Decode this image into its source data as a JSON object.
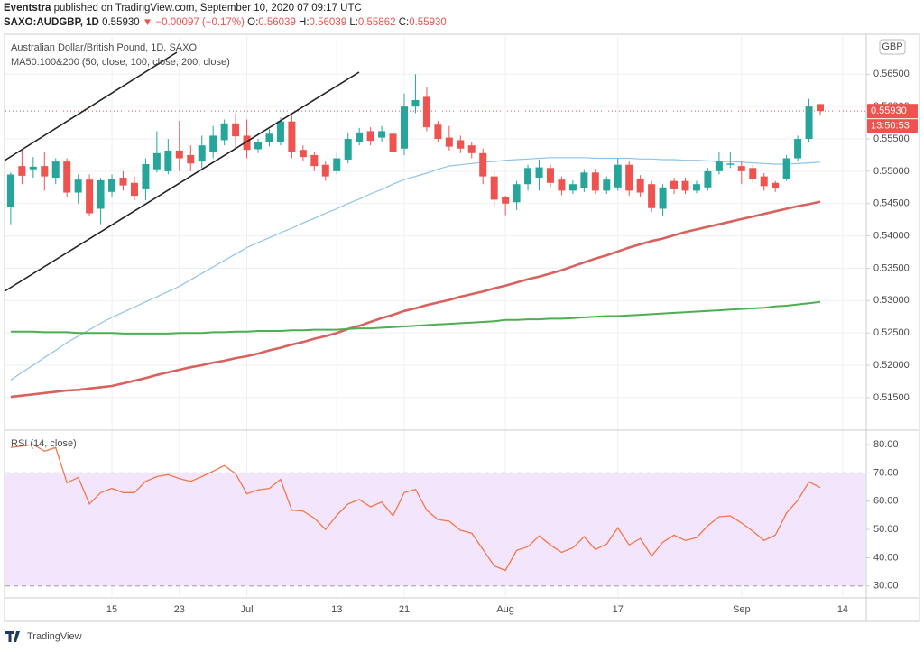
{
  "header": {
    "author": "Eventstra",
    "published": "published on TradingView.com, September 10, 2020 07:09:17 UTC",
    "symbol": "SAXO:AUDGBP, 1D",
    "last": "0.55930",
    "arrow": "▼",
    "change": "−0.00097 (−0.17%)",
    "quote": [
      {
        "label": "O:",
        "value": "0.56039"
      },
      {
        "label": "H:",
        "value": "0.56039"
      },
      {
        "label": "L:",
        "value": "0.55862"
      },
      {
        "label": "C:",
        "value": "0.55930"
      }
    ]
  },
  "footer": {
    "brand": "TradingView"
  },
  "chart_data": [
    {
      "type": "candlestick",
      "title": "Australian Dollar/British Pound, 1D, SAXO",
      "subtitle": "MA50.100&200 (50, close, 100, close, 200, close)",
      "currency": "GBP",
      "price_label": "0.55930",
      "countdown": "13:50:53",
      "up_color": "#26a69a",
      "down_color": "#ef5350",
      "grid": true,
      "categories": [
        null,
        null,
        null,
        null,
        null,
        null,
        null,
        null,
        null,
        "15",
        null,
        null,
        null,
        null,
        null,
        "23",
        null,
        null,
        null,
        null,
        null,
        "Jul",
        null,
        null,
        null,
        null,
        null,
        null,
        null,
        "13",
        null,
        null,
        null,
        null,
        null,
        "21",
        null,
        null,
        null,
        null,
        null,
        null,
        null,
        null,
        "Aug",
        null,
        null,
        null,
        null,
        null,
        null,
        null,
        null,
        null,
        "17",
        null,
        null,
        null,
        null,
        null,
        null,
        null,
        null,
        null,
        null,
        "Sep",
        null,
        null,
        null,
        null,
        null,
        null,
        null,
        null,
        "14"
      ],
      "open": [
        0.5445,
        0.5508,
        0.5503,
        0.5508,
        0.549,
        0.5515,
        0.5467,
        0.5487,
        0.5442,
        0.5468,
        0.549,
        0.5482,
        0.5472,
        0.5503,
        0.55,
        0.5532,
        0.5525,
        0.5515,
        0.553,
        0.5548,
        0.5574,
        0.5555,
        0.5534,
        0.5545,
        0.5545,
        0.5577,
        0.5533,
        0.5525,
        0.551,
        0.55,
        0.5518,
        0.5545,
        0.5562,
        0.5552,
        0.5558,
        0.5535,
        0.56,
        0.5615,
        0.5572,
        0.5552,
        0.5548,
        0.554,
        0.5528,
        0.5492,
        0.546,
        0.5452,
        0.548,
        0.549,
        0.5505,
        0.5487,
        0.547,
        0.5474,
        0.5498,
        0.547,
        0.5475,
        0.551,
        0.5488,
        0.548,
        0.5442,
        0.5485,
        0.5485,
        0.547,
        0.5475,
        0.55,
        0.551,
        0.5508,
        0.5505,
        0.5492,
        0.5482,
        0.5488,
        0.552,
        0.555,
        0.56039,
        null,
        null
      ],
      "high": [
        0.5498,
        0.5533,
        0.5522,
        0.553,
        0.552,
        0.552,
        0.5495,
        0.5495,
        0.549,
        0.5495,
        0.55,
        0.5492,
        0.552,
        0.5562,
        0.555,
        0.5578,
        0.554,
        0.5555,
        0.557,
        0.558,
        0.559,
        0.558,
        0.555,
        0.5565,
        0.5583,
        0.5586,
        0.554,
        0.553,
        0.5515,
        0.5528,
        0.556,
        0.5567,
        0.5568,
        0.557,
        0.557,
        0.562,
        0.565,
        0.563,
        0.5578,
        0.557,
        0.5555,
        0.5545,
        0.5535,
        0.55,
        0.5462,
        0.5485,
        0.551,
        0.5518,
        0.551,
        0.5492,
        0.5486,
        0.5503,
        0.5504,
        0.5492,
        0.552,
        0.5515,
        0.5494,
        0.5485,
        0.548,
        0.549,
        0.549,
        0.5485,
        0.5505,
        0.553,
        0.553,
        0.5515,
        0.551,
        0.5497,
        0.5485,
        0.5525,
        0.5555,
        0.5612,
        0.56039,
        null,
        null
      ],
      "low": [
        0.5418,
        0.548,
        0.549,
        0.547,
        0.548,
        0.546,
        0.545,
        0.543,
        0.5418,
        0.546,
        0.547,
        0.5455,
        0.5455,
        0.5498,
        0.5495,
        0.55,
        0.55,
        0.5505,
        0.552,
        0.554,
        0.5535,
        0.552,
        0.5528,
        0.5538,
        0.554,
        0.552,
        0.5515,
        0.55,
        0.5485,
        0.5495,
        0.5512,
        0.554,
        0.554,
        0.5545,
        0.5525,
        0.5525,
        0.559,
        0.5562,
        0.5545,
        0.5532,
        0.5528,
        0.552,
        0.548,
        0.5445,
        0.5432,
        0.544,
        0.547,
        0.547,
        0.5475,
        0.5463,
        0.5465,
        0.5468,
        0.5465,
        0.5465,
        0.547,
        0.5462,
        0.546,
        0.5437,
        0.543,
        0.5465,
        0.5465,
        0.5466,
        0.547,
        0.5495,
        0.5505,
        0.548,
        0.5482,
        0.547,
        0.5468,
        0.5485,
        0.5515,
        0.5545,
        0.55862,
        null,
        null
      ],
      "close": [
        0.5495,
        0.5493,
        0.5507,
        0.5492,
        0.5515,
        0.5467,
        0.5487,
        0.5435,
        0.5486,
        0.5488,
        0.5478,
        0.5462,
        0.5511,
        0.5528,
        0.5532,
        0.552,
        0.5512,
        0.554,
        0.5555,
        0.5574,
        0.5554,
        0.5533,
        0.5545,
        0.5558,
        0.5577,
        0.553,
        0.5522,
        0.5508,
        0.5492,
        0.552,
        0.555,
        0.556,
        0.5547,
        0.5562,
        0.553,
        0.56,
        0.561,
        0.5568,
        0.555,
        0.5538,
        0.5535,
        0.5528,
        0.5492,
        0.5456,
        0.545,
        0.548,
        0.5505,
        0.5506,
        0.5482,
        0.547,
        0.548,
        0.5498,
        0.547,
        0.5487,
        0.551,
        0.547,
        0.5467,
        0.5443,
        0.5475,
        0.5472,
        0.547,
        0.548,
        0.55,
        0.5515,
        0.5512,
        0.55,
        0.5488,
        0.5477,
        0.5474,
        0.552,
        0.555,
        0.56,
        0.5593,
        null,
        null
      ],
      "lines": [
        {
          "color": "#8cc4ec",
          "width": 1.2,
          "values": [
            0.5177,
            0.5189,
            0.52,
            0.5212,
            0.5223,
            0.5235,
            0.5245,
            0.5255,
            0.5265,
            0.5274,
            0.5282,
            0.529,
            0.5298,
            0.5306,
            0.5314,
            0.5322,
            0.5332,
            0.5342,
            0.5352,
            0.5362,
            0.5372,
            0.5382,
            0.539,
            0.5397,
            0.5405,
            0.5412,
            0.542,
            0.5427,
            0.5435,
            0.5442,
            0.545,
            0.5457,
            0.5465,
            0.5472,
            0.548,
            0.5487,
            0.5492,
            0.5497,
            0.5503,
            0.5508,
            0.551,
            0.5512,
            0.5514,
            0.5515,
            0.5517,
            0.5518,
            0.5519,
            0.552,
            0.5521,
            0.5521,
            0.5521,
            0.5521,
            0.552,
            0.552,
            0.552,
            0.552,
            0.5519,
            0.5519,
            0.5518,
            0.5518,
            0.5517,
            0.5517,
            0.5516,
            0.5515,
            0.5515,
            0.5514,
            0.5513,
            0.5512,
            0.5511,
            0.5511,
            0.5512,
            0.5513,
            0.5514,
            null,
            null
          ]
        },
        {
          "color": "#d9625f",
          "width": 2.6,
          "values": [
            0.5151,
            0.5153,
            0.5155,
            0.5157,
            0.5159,
            0.5161,
            0.5162,
            0.5164,
            0.5166,
            0.5168,
            0.5172,
            0.5176,
            0.518,
            0.5185,
            0.5189,
            0.5193,
            0.5197,
            0.52,
            0.5204,
            0.5207,
            0.5211,
            0.5214,
            0.5218,
            0.5223,
            0.5227,
            0.5232,
            0.5236,
            0.5241,
            0.5245,
            0.525,
            0.5256,
            0.5261,
            0.5267,
            0.5273,
            0.5278,
            0.5284,
            0.5288,
            0.5293,
            0.5297,
            0.5301,
            0.5306,
            0.531,
            0.5314,
            0.5319,
            0.5323,
            0.5328,
            0.5333,
            0.5337,
            0.5342,
            0.5347,
            0.5353,
            0.5359,
            0.5365,
            0.537,
            0.5376,
            0.5382,
            0.5387,
            0.5392,
            0.5396,
            0.5401,
            0.5406,
            0.541,
            0.5414,
            0.5418,
            0.5422,
            0.5426,
            0.543,
            0.5434,
            0.5438,
            0.5442,
            0.5446,
            0.5449,
            0.5453,
            null,
            null
          ]
        },
        {
          "color": "#4caf50",
          "width": 2,
          "values": [
            0.5252,
            0.5252,
            0.5252,
            0.5251,
            0.5251,
            0.5251,
            0.525,
            0.525,
            0.525,
            0.525,
            0.5249,
            0.5249,
            0.5249,
            0.5249,
            0.5249,
            0.525,
            0.525,
            0.525,
            0.5251,
            0.5251,
            0.5252,
            0.5252,
            0.5253,
            0.5253,
            0.5253,
            0.5254,
            0.5254,
            0.5255,
            0.5255,
            0.5255,
            0.5256,
            0.5257,
            0.5257,
            0.5258,
            0.5259,
            0.526,
            0.5261,
            0.5262,
            0.5263,
            0.5264,
            0.5265,
            0.5266,
            0.5267,
            0.5268,
            0.527,
            0.527,
            0.5271,
            0.5271,
            0.5272,
            0.5272,
            0.5273,
            0.5274,
            0.5275,
            0.5276,
            0.5276,
            0.5277,
            0.5278,
            0.5279,
            0.528,
            0.5281,
            0.5282,
            0.5283,
            0.5284,
            0.5285,
            0.5286,
            0.5287,
            0.5288,
            0.5289,
            0.5291,
            0.5292,
            0.5294,
            0.5296,
            0.5298,
            null,
            null
          ]
        }
      ],
      "ylim": [
        0.5101,
        0.5709
      ],
      "yticks": [
        {
          "value": 0.515,
          "label": "0.51500"
        },
        {
          "value": 0.52,
          "label": "0.52000"
        },
        {
          "value": 0.525,
          "label": "0.52500"
        },
        {
          "value": 0.53,
          "label": "0.53000"
        },
        {
          "value": 0.535,
          "label": "0.53500"
        },
        {
          "value": 0.54,
          "label": "0.54000"
        },
        {
          "value": 0.545,
          "label": "0.54500"
        },
        {
          "value": 0.55,
          "label": "0.55000"
        },
        {
          "value": 0.555,
          "label": "0.55500"
        },
        {
          "value": 0.56,
          "label": "0.56000"
        },
        {
          "value": 0.565,
          "label": "0.56500"
        }
      ]
    },
    {
      "type": "line",
      "title": "RSI (14, close)",
      "color": "#f4774a",
      "band": [
        30,
        70
      ],
      "band_color": "#f3e5fb",
      "values": [
        79,
        79.5,
        80,
        77.7,
        79,
        66.5,
        68.4,
        59,
        63,
        64.5,
        63,
        63,
        67,
        68.7,
        69.4,
        68,
        67,
        68.7,
        70.6,
        72.6,
        69.7,
        62.6,
        64,
        64.5,
        67.7,
        56.8,
        56.5,
        54,
        50,
        55,
        59,
        60.6,
        58,
        59.7,
        54.8,
        63,
        64.2,
        56.8,
        53.5,
        52.9,
        49.7,
        48.7,
        42.9,
        37.1,
        35.5,
        42.6,
        43.9,
        47.7,
        44.5,
        41.9,
        43.5,
        47.4,
        42.9,
        44.8,
        50.6,
        44.5,
        46.8,
        40.6,
        45.5,
        48,
        46.1,
        47.1,
        51.3,
        54.5,
        54.8,
        52.3,
        49.4,
        46.1,
        48,
        55.8,
        60.3,
        66.8,
        64.8,
        null,
        null
      ],
      "ylim": [
        26.1,
        84.8
      ],
      "yticks": [
        {
          "value": 30,
          "label": "30.00"
        },
        {
          "value": 40,
          "label": "40.00"
        },
        {
          "value": 50,
          "label": "50.00"
        },
        {
          "value": 60,
          "label": "60.00"
        },
        {
          "value": 70,
          "label": "70.00"
        },
        {
          "value": 80,
          "label": "80.00"
        }
      ]
    }
  ]
}
